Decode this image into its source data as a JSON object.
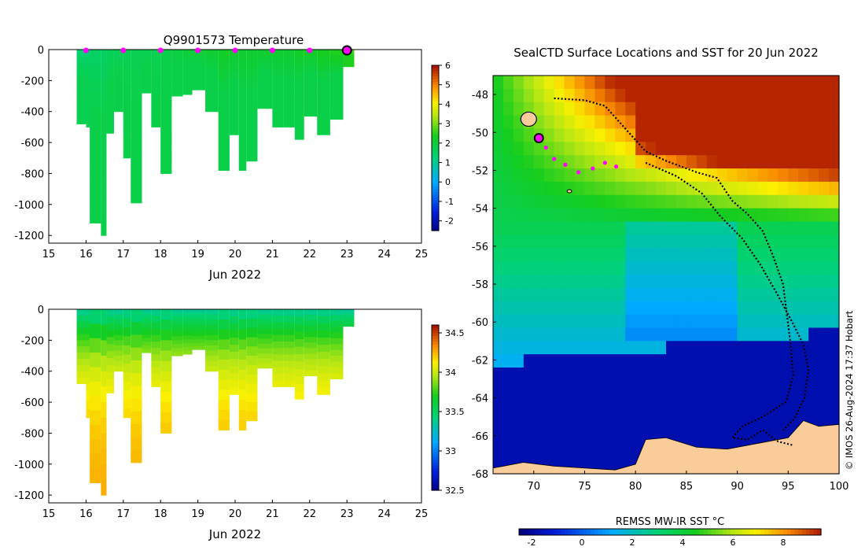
{
  "charts": [
    {
      "type": "heatmap",
      "id": "temperature",
      "title": "Q9901573  Temperature",
      "xlabel": "Jun 2022",
      "xlim": [
        15,
        25
      ],
      "ylim": [
        -1250,
        0
      ],
      "xticks": [
        "15",
        "16",
        "17",
        "18",
        "19",
        "20",
        "21",
        "22",
        "23",
        "24",
        "25"
      ],
      "yticks": [
        "0",
        "-200",
        "-400",
        "-600",
        "-800",
        "-1000",
        "-1200"
      ],
      "colorbar": {
        "ticks": [
          "6",
          "5",
          "4",
          "3",
          "2",
          "1",
          "0",
          "-1",
          "-2"
        ],
        "range": [
          -2.5,
          6
        ]
      },
      "marker_days": [
        16,
        17,
        18,
        19,
        20,
        21,
        22
      ],
      "current_day": 23,
      "profiles": [
        {
          "t": 15.58,
          "depth": 500,
          "surf": 1.5,
          "deep": 1.8
        },
        {
          "t": 15.75,
          "depth": 480,
          "surf": 1.5,
          "deep": 1.8
        },
        {
          "t": 16.1,
          "depth": 1120,
          "surf": 1.6,
          "deep": 1.9
        },
        {
          "t": 16.4,
          "depth": 1200,
          "surf": 1.6,
          "deep": 1.9
        },
        {
          "t": 16.55,
          "depth": 540,
          "surf": 1.7,
          "deep": 1.9
        },
        {
          "t": 16.75,
          "depth": 400,
          "surf": 1.7,
          "deep": 1.9
        },
        {
          "t": 17.0,
          "depth": 700,
          "surf": 1.8,
          "deep": 1.9
        },
        {
          "t": 17.2,
          "depth": 990,
          "surf": 1.8,
          "deep": 1.9
        },
        {
          "t": 17.5,
          "depth": 280,
          "surf": 1.8,
          "deep": 1.9
        },
        {
          "t": 17.75,
          "depth": 500,
          "surf": 1.8,
          "deep": 1.9
        },
        {
          "t": 18.0,
          "depth": 800,
          "surf": 1.9,
          "deep": 1.9
        },
        {
          "t": 18.3,
          "depth": 300,
          "surf": 2.0,
          "deep": 1.9
        },
        {
          "t": 18.6,
          "depth": 290,
          "surf": 2.1,
          "deep": 1.9
        },
        {
          "t": 18.85,
          "depth": 260,
          "surf": 2.1,
          "deep": 1.9
        },
        {
          "t": 19.2,
          "depth": 400,
          "surf": 2.2,
          "deep": 1.9
        },
        {
          "t": 19.55,
          "depth": 780,
          "surf": 2.3,
          "deep": 1.9
        },
        {
          "t": 19.85,
          "depth": 550,
          "surf": 2.2,
          "deep": 1.9
        },
        {
          "t": 20.1,
          "depth": 780,
          "surf": 2.2,
          "deep": 1.9
        },
        {
          "t": 20.3,
          "depth": 720,
          "surf": 2.2,
          "deep": 1.9
        },
        {
          "t": 20.6,
          "depth": 380,
          "surf": 2.2,
          "deep": 1.9
        },
        {
          "t": 21.0,
          "depth": 500,
          "surf": 2.2,
          "deep": 1.9
        },
        {
          "t": 21.3,
          "depth": 500,
          "surf": 2.2,
          "deep": 1.9
        },
        {
          "t": 21.6,
          "depth": 580,
          "surf": 2.3,
          "deep": 1.9
        },
        {
          "t": 21.85,
          "depth": 430,
          "surf": 2.3,
          "deep": 1.9
        },
        {
          "t": 22.2,
          "depth": 550,
          "surf": 2.4,
          "deep": 1.9
        },
        {
          "t": 22.55,
          "depth": 450,
          "surf": 2.5,
          "deep": 1.9
        },
        {
          "t": 22.9,
          "depth": 110,
          "surf": 2.8,
          "deep": 2.5
        }
      ]
    },
    {
      "type": "heatmap",
      "id": "salinity",
      "title": "",
      "xlabel": "Jun 2022",
      "xlim": [
        15,
        25
      ],
      "ylim": [
        -1250,
        0
      ],
      "xticks": [
        "15",
        "16",
        "17",
        "18",
        "19",
        "20",
        "21",
        "22",
        "23",
        "24",
        "25"
      ],
      "yticks": [
        "0",
        "-200",
        "-400",
        "-600",
        "-800",
        "-1000",
        "-1200"
      ],
      "colorbar": {
        "ticks": [
          "34.5",
          "34",
          "33.5",
          "33",
          "32.5"
        ],
        "range": [
          32.5,
          34.6
        ]
      },
      "profiles": [
        {
          "t": 15.58,
          "depth": 700
        },
        {
          "t": 15.75,
          "depth": 480
        },
        {
          "t": 16.1,
          "depth": 1120
        },
        {
          "t": 16.4,
          "depth": 1200
        },
        {
          "t": 16.55,
          "depth": 540
        },
        {
          "t": 16.75,
          "depth": 400
        },
        {
          "t": 17.0,
          "depth": 700
        },
        {
          "t": 17.2,
          "depth": 990
        },
        {
          "t": 17.5,
          "depth": 280
        },
        {
          "t": 17.75,
          "depth": 500
        },
        {
          "t": 18.0,
          "depth": 800
        },
        {
          "t": 18.3,
          "depth": 300
        },
        {
          "t": 18.6,
          "depth": 290
        },
        {
          "t": 18.85,
          "depth": 260
        },
        {
          "t": 19.2,
          "depth": 400
        },
        {
          "t": 19.55,
          "depth": 780
        },
        {
          "t": 19.85,
          "depth": 550
        },
        {
          "t": 20.1,
          "depth": 780
        },
        {
          "t": 20.3,
          "depth": 720
        },
        {
          "t": 20.6,
          "depth": 380
        },
        {
          "t": 21.0,
          "depth": 500
        },
        {
          "t": 21.3,
          "depth": 500
        },
        {
          "t": 21.6,
          "depth": 580
        },
        {
          "t": 21.85,
          "depth": 430
        },
        {
          "t": 22.2,
          "depth": 550
        },
        {
          "t": 22.55,
          "depth": 450
        },
        {
          "t": 22.9,
          "depth": 110
        }
      ]
    },
    {
      "type": "map",
      "id": "sst-map",
      "title": "SealCTD Surface Locations and SST for 20 Jun 2022",
      "xlim": [
        66,
        100
      ],
      "ylim": [
        -68,
        -47
      ],
      "xticks": [
        "70",
        "75",
        "80",
        "85",
        "90",
        "95",
        "100"
      ],
      "yticks": [
        "-48",
        "-50",
        "-52",
        "-54",
        "-56",
        "-58",
        "-60",
        "-62",
        "-64",
        "-66",
        "-68"
      ],
      "colorbar": {
        "label": "REMSS MW-IR SST °C",
        "ticks": [
          "-2",
          "0",
          "2",
          "4",
          "6",
          "8"
        ],
        "range": [
          -2.5,
          9.5
        ]
      },
      "current_position": [
        70.5,
        -50.3
      ],
      "recent_positions": [
        [
          71.2,
          -50.8
        ],
        [
          72.0,
          -51.4
        ],
        [
          73.1,
          -51.7
        ],
        [
          74.4,
          -52.1
        ],
        [
          75.8,
          -51.9
        ],
        [
          77.0,
          -51.6
        ],
        [
          78.1,
          -51.8
        ]
      ],
      "track": [
        [
          72,
          -48.2
        ],
        [
          75,
          -48.3
        ],
        [
          77,
          -48.6
        ],
        [
          79,
          -49.8
        ],
        [
          81,
          -51
        ],
        [
          83,
          -51.5
        ],
        [
          86,
          -52.1
        ],
        [
          88,
          -52.4
        ],
        [
          89.5,
          -53.6
        ],
        [
          91,
          -54.3
        ],
        [
          92.5,
          -55.2
        ],
        [
          93.5,
          -56.5
        ],
        [
          94.5,
          -58
        ],
        [
          94.8,
          -59.3
        ],
        [
          95.2,
          -61
        ],
        [
          95.5,
          -62.8
        ],
        [
          94.8,
          -64.2
        ],
        [
          92.5,
          -65
        ],
        [
          90.5,
          -65.5
        ],
        [
          89.5,
          -66.1
        ],
        [
          91,
          -66.2
        ],
        [
          92.5,
          -65.7
        ],
        [
          94,
          -66.3
        ],
        [
          95.5,
          -66.5
        ]
      ],
      "track2": [
        [
          81,
          -51.6
        ],
        [
          84,
          -52.3
        ],
        [
          86.5,
          -53.2
        ],
        [
          88.3,
          -54.4
        ],
        [
          90.5,
          -55.6
        ],
        [
          92.3,
          -57
        ],
        [
          94,
          -58.6
        ],
        [
          95.4,
          -60
        ],
        [
          96.5,
          -61.2
        ],
        [
          97,
          -62.5
        ],
        [
          96.6,
          -64
        ],
        [
          95.6,
          -65.1
        ],
        [
          94.5,
          -65.7
        ]
      ],
      "credit": "© IMOS 26-Aug-2024 17:37 Hobart",
      "land_color": "#f9cc9a"
    }
  ]
}
